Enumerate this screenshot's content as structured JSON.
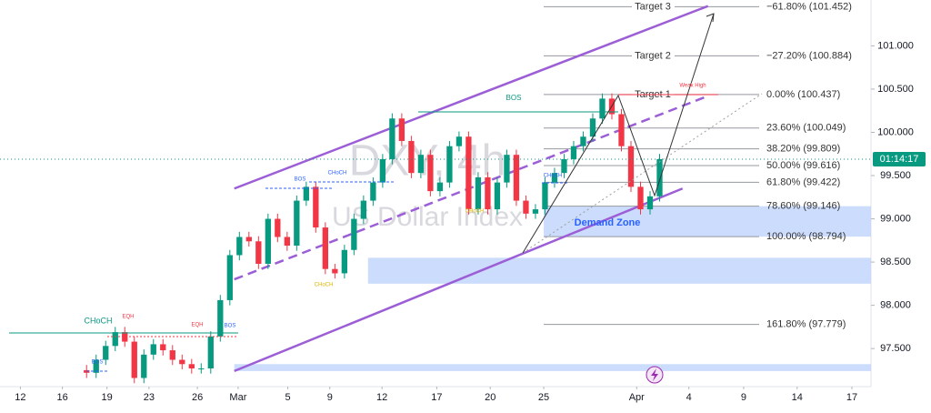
{
  "chart_data": {
    "type": "candlestick",
    "title": "DXY, 4h",
    "subtitle": "US Dollar Index",
    "xlim": [
      0,
      68.4
    ],
    "ylim": [
      97.06,
      101.53
    ],
    "xticks": [
      {
        "value": 1.6,
        "label": "12"
      },
      {
        "value": 4.9,
        "label": "16"
      },
      {
        "value": 8.4,
        "label": "19"
      },
      {
        "value": 11.7,
        "label": "23"
      },
      {
        "value": 15.5,
        "label": "26"
      },
      {
        "value": 18.7,
        "label": "Mar"
      },
      {
        "value": 22.6,
        "label": "5"
      },
      {
        "value": 25.9,
        "label": "9"
      },
      {
        "value": 30,
        "label": "12"
      },
      {
        "value": 34.3,
        "label": "17"
      },
      {
        "value": 38.5,
        "label": "20"
      },
      {
        "value": 42.7,
        "label": "25"
      },
      {
        "value": 50,
        "label": "Apr"
      },
      {
        "value": 54.1,
        "label": "4"
      },
      {
        "value": 58.4,
        "label": "9"
      },
      {
        "value": 62.6,
        "label": "14"
      },
      {
        "value": 66.9,
        "label": "17"
      }
    ],
    "yticks": [
      {
        "value": 97.5,
        "label": "97.500"
      },
      {
        "value": 98,
        "label": "98.000"
      },
      {
        "value": 98.5,
        "label": "98.500"
      },
      {
        "value": 99,
        "label": "99.000"
      },
      {
        "value": 99.5,
        "label": "99.500"
      },
      {
        "value": 100,
        "label": "100.000"
      },
      {
        "value": 100.5,
        "label": "100.500"
      },
      {
        "value": 101,
        "label": "101.000"
      }
    ],
    "up_color": "#089981",
    "down_color": "#f23645",
    "x": [
      6.8,
      7.55,
      8.3,
      9.05,
      9.8,
      10.55,
      11.3,
      12.05,
      12.8,
      13.55,
      14.3,
      15.05,
      15.8,
      16.55,
      17.3,
      18.05,
      18.8,
      19.55,
      20.3,
      21.05,
      21.8,
      22.55,
      23.3,
      24.05,
      24.8,
      25.55,
      26.3,
      27.05,
      27.8,
      28.55,
      29.3,
      30.05,
      30.8,
      31.55,
      32.3,
      33.05,
      33.8,
      34.55,
      35.3,
      36.05,
      36.8,
      37.55,
      38.3,
      39.05,
      39.8,
      40.55,
      41.3,
      42.05,
      42.8,
      43.55,
      44.3,
      45.05,
      45.8,
      46.55,
      47.3,
      48.05,
      48.8,
      49.55,
      50.3,
      51.05,
      51.8
    ],
    "open": [
      97.25,
      97.22,
      97.37,
      97.53,
      97.69,
      97.58,
      97.16,
      97.43,
      97.55,
      97.48,
      97.37,
      97.32,
      97.27,
      97.27,
      97.64,
      98.06,
      98.58,
      98.79,
      98.74,
      98.48,
      99.0,
      98.79,
      98.69,
      99.21,
      99.37,
      98.9,
      98.42,
      98.37,
      98.64,
      99.0,
      99.21,
      99.42,
      99.69,
      100.16,
      99.9,
      99.53,
      99.74,
      99.32,
      99.42,
      99.84,
      99.95,
      99.11,
      99.48,
      99.11,
      99.42,
      99.74,
      99.21,
      99.06,
      99.11,
      99.42,
      99.53,
      99.69,
      99.84,
      99.95,
      100.16,
      100.39,
      100.21,
      99.84,
      99.37,
      99.11,
      99.26
    ],
    "high": [
      97.31,
      97.43,
      97.59,
      97.75,
      97.75,
      97.64,
      97.49,
      97.61,
      97.61,
      97.54,
      97.43,
      97.38,
      97.33,
      97.7,
      98.12,
      98.64,
      98.85,
      98.85,
      98.8,
      99.06,
      99.06,
      98.85,
      99.27,
      99.43,
      99.43,
      98.96,
      98.48,
      98.7,
      99.06,
      99.27,
      99.48,
      99.75,
      100.22,
      100.22,
      99.96,
      99.8,
      99.8,
      99.48,
      99.9,
      100.01,
      100.01,
      99.54,
      99.54,
      99.48,
      99.8,
      99.8,
      99.27,
      99.17,
      99.48,
      99.59,
      99.75,
      99.9,
      100.01,
      100.22,
      100.45,
      100.45,
      100.27,
      99.9,
      99.43,
      99.32,
      99.75
    ],
    "low": [
      97.16,
      97.16,
      97.31,
      97.47,
      97.52,
      97.1,
      97.1,
      97.37,
      97.42,
      97.31,
      97.26,
      97.21,
      97.21,
      97.21,
      97.58,
      98.0,
      98.52,
      98.68,
      98.42,
      98.42,
      98.73,
      98.63,
      98.63,
      99.15,
      98.84,
      98.36,
      98.31,
      98.31,
      98.58,
      98.94,
      99.15,
      99.36,
      99.63,
      99.84,
      99.47,
      99.47,
      99.26,
      99.26,
      99.36,
      99.78,
      99.05,
      99.05,
      99.05,
      99.05,
      99.36,
      99.15,
      99.0,
      99.0,
      99.05,
      99.36,
      99.47,
      99.63,
      99.78,
      99.89,
      100.1,
      100.15,
      99.78,
      99.31,
      99.05,
      99.05,
      99.2
    ],
    "close": [
      97.22,
      97.37,
      97.53,
      97.69,
      97.58,
      97.16,
      97.43,
      97.55,
      97.48,
      97.37,
      97.32,
      97.27,
      97.27,
      97.64,
      98.06,
      98.58,
      98.79,
      98.74,
      98.48,
      99.0,
      98.79,
      98.69,
      99.21,
      99.37,
      98.9,
      98.42,
      98.37,
      98.64,
      99.0,
      99.21,
      99.42,
      99.69,
      100.16,
      99.9,
      99.53,
      99.74,
      99.32,
      99.42,
      99.84,
      99.95,
      99.11,
      99.48,
      99.11,
      99.42,
      99.74,
      99.21,
      99.06,
      99.11,
      99.42,
      99.53,
      99.69,
      99.84,
      99.95,
      100.16,
      100.39,
      100.21,
      99.84,
      99.37,
      99.11,
      99.26,
      99.69
    ],
    "fib_levels": [
      {
        "label": "0.00% (100.437)",
        "value": 100.437,
        "target": "Target 1"
      },
      {
        "label": "23.60% (100.049)",
        "value": 100.049
      },
      {
        "label": "38.20% (99.809)",
        "value": 99.809
      },
      {
        "label": "50.00% (99.616)",
        "value": 99.616
      },
      {
        "label": "61.80% (99.422)",
        "value": 99.422
      },
      {
        "label": "78.60% (99.146)",
        "value": 99.146
      },
      {
        "label": "100.00% (98.794)",
        "value": 98.794
      },
      {
        "label": "161.80% (97.779)",
        "value": 97.779
      },
      {
        "label": "−27.20% (100.884)",
        "value": 100.884,
        "target": "Target 2"
      },
      {
        "label": "−61.80% (101.452)",
        "value": 101.452,
        "target": "Target 3"
      }
    ],
    "zones": [
      {
        "name": "Demand Zone",
        "x0": 42.7,
        "x1": 68.4,
        "y0": 98.794,
        "y1": 99.146
      },
      {
        "x0": 28.9,
        "x1": 68.4,
        "y0": 98.25,
        "y1": 98.55
      },
      {
        "x0": 18.4,
        "x1": 68.4,
        "y0": 97.24,
        "y1": 97.32
      }
    ],
    "channel": [
      {
        "x": [
          18.4,
          55.6
        ],
        "y": [
          99.35,
          101.46
        ]
      },
      {
        "x": [
          18.4,
          53.6
        ],
        "y": [
          97.24,
          99.35
        ]
      },
      {
        "x": [
          18.4,
          55.6
        ],
        "y": [
          98.3,
          100.42
        ],
        "dashed": true
      }
    ],
    "annotations": [
      "CHoCH",
      "EQH",
      "EQH",
      "BOS",
      "BOS",
      "BOS",
      "CHoCH",
      "CHoCH",
      "CHoCH",
      "BOS",
      "CHoCH",
      "Weak High"
    ],
    "countdown": "01:14:17"
  }
}
